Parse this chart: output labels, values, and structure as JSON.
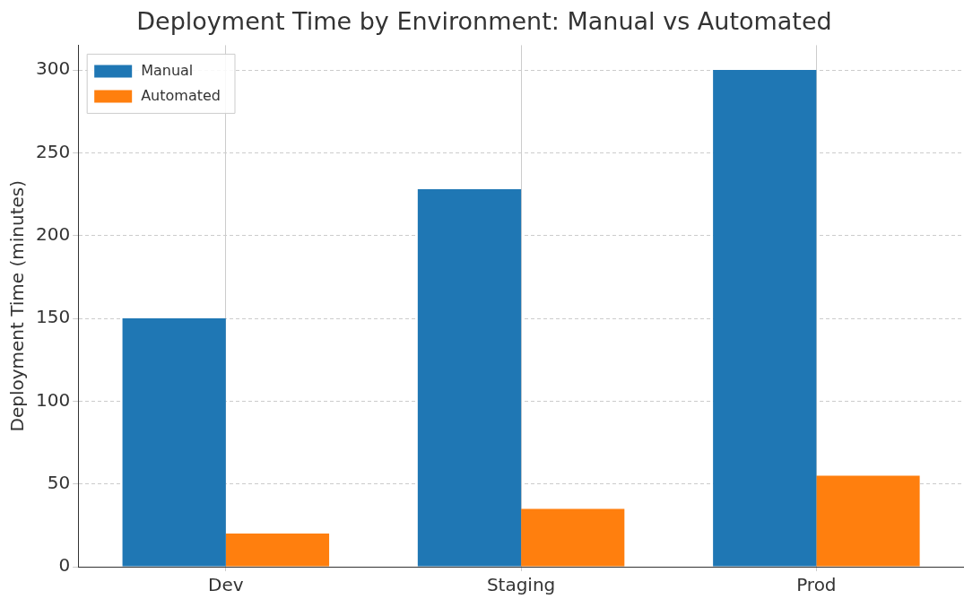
{
  "chart_data": {
    "type": "bar",
    "title": "Deployment Time by Environment: Manual vs Automated",
    "ylabel": "Deployment Time (minutes)",
    "categories": [
      "Dev",
      "Staging",
      "Prod"
    ],
    "series": [
      {
        "name": "Manual",
        "color": "#1f77b4",
        "values": [
          150,
          228,
          300
        ]
      },
      {
        "name": "Automated",
        "color": "#ff7f0e",
        "values": [
          20,
          35,
          55
        ]
      }
    ],
    "ylim": [
      0,
      315
    ],
    "yticks": [
      0,
      50,
      100,
      150,
      200,
      250,
      300
    ],
    "grid": true,
    "legend": "top left"
  }
}
